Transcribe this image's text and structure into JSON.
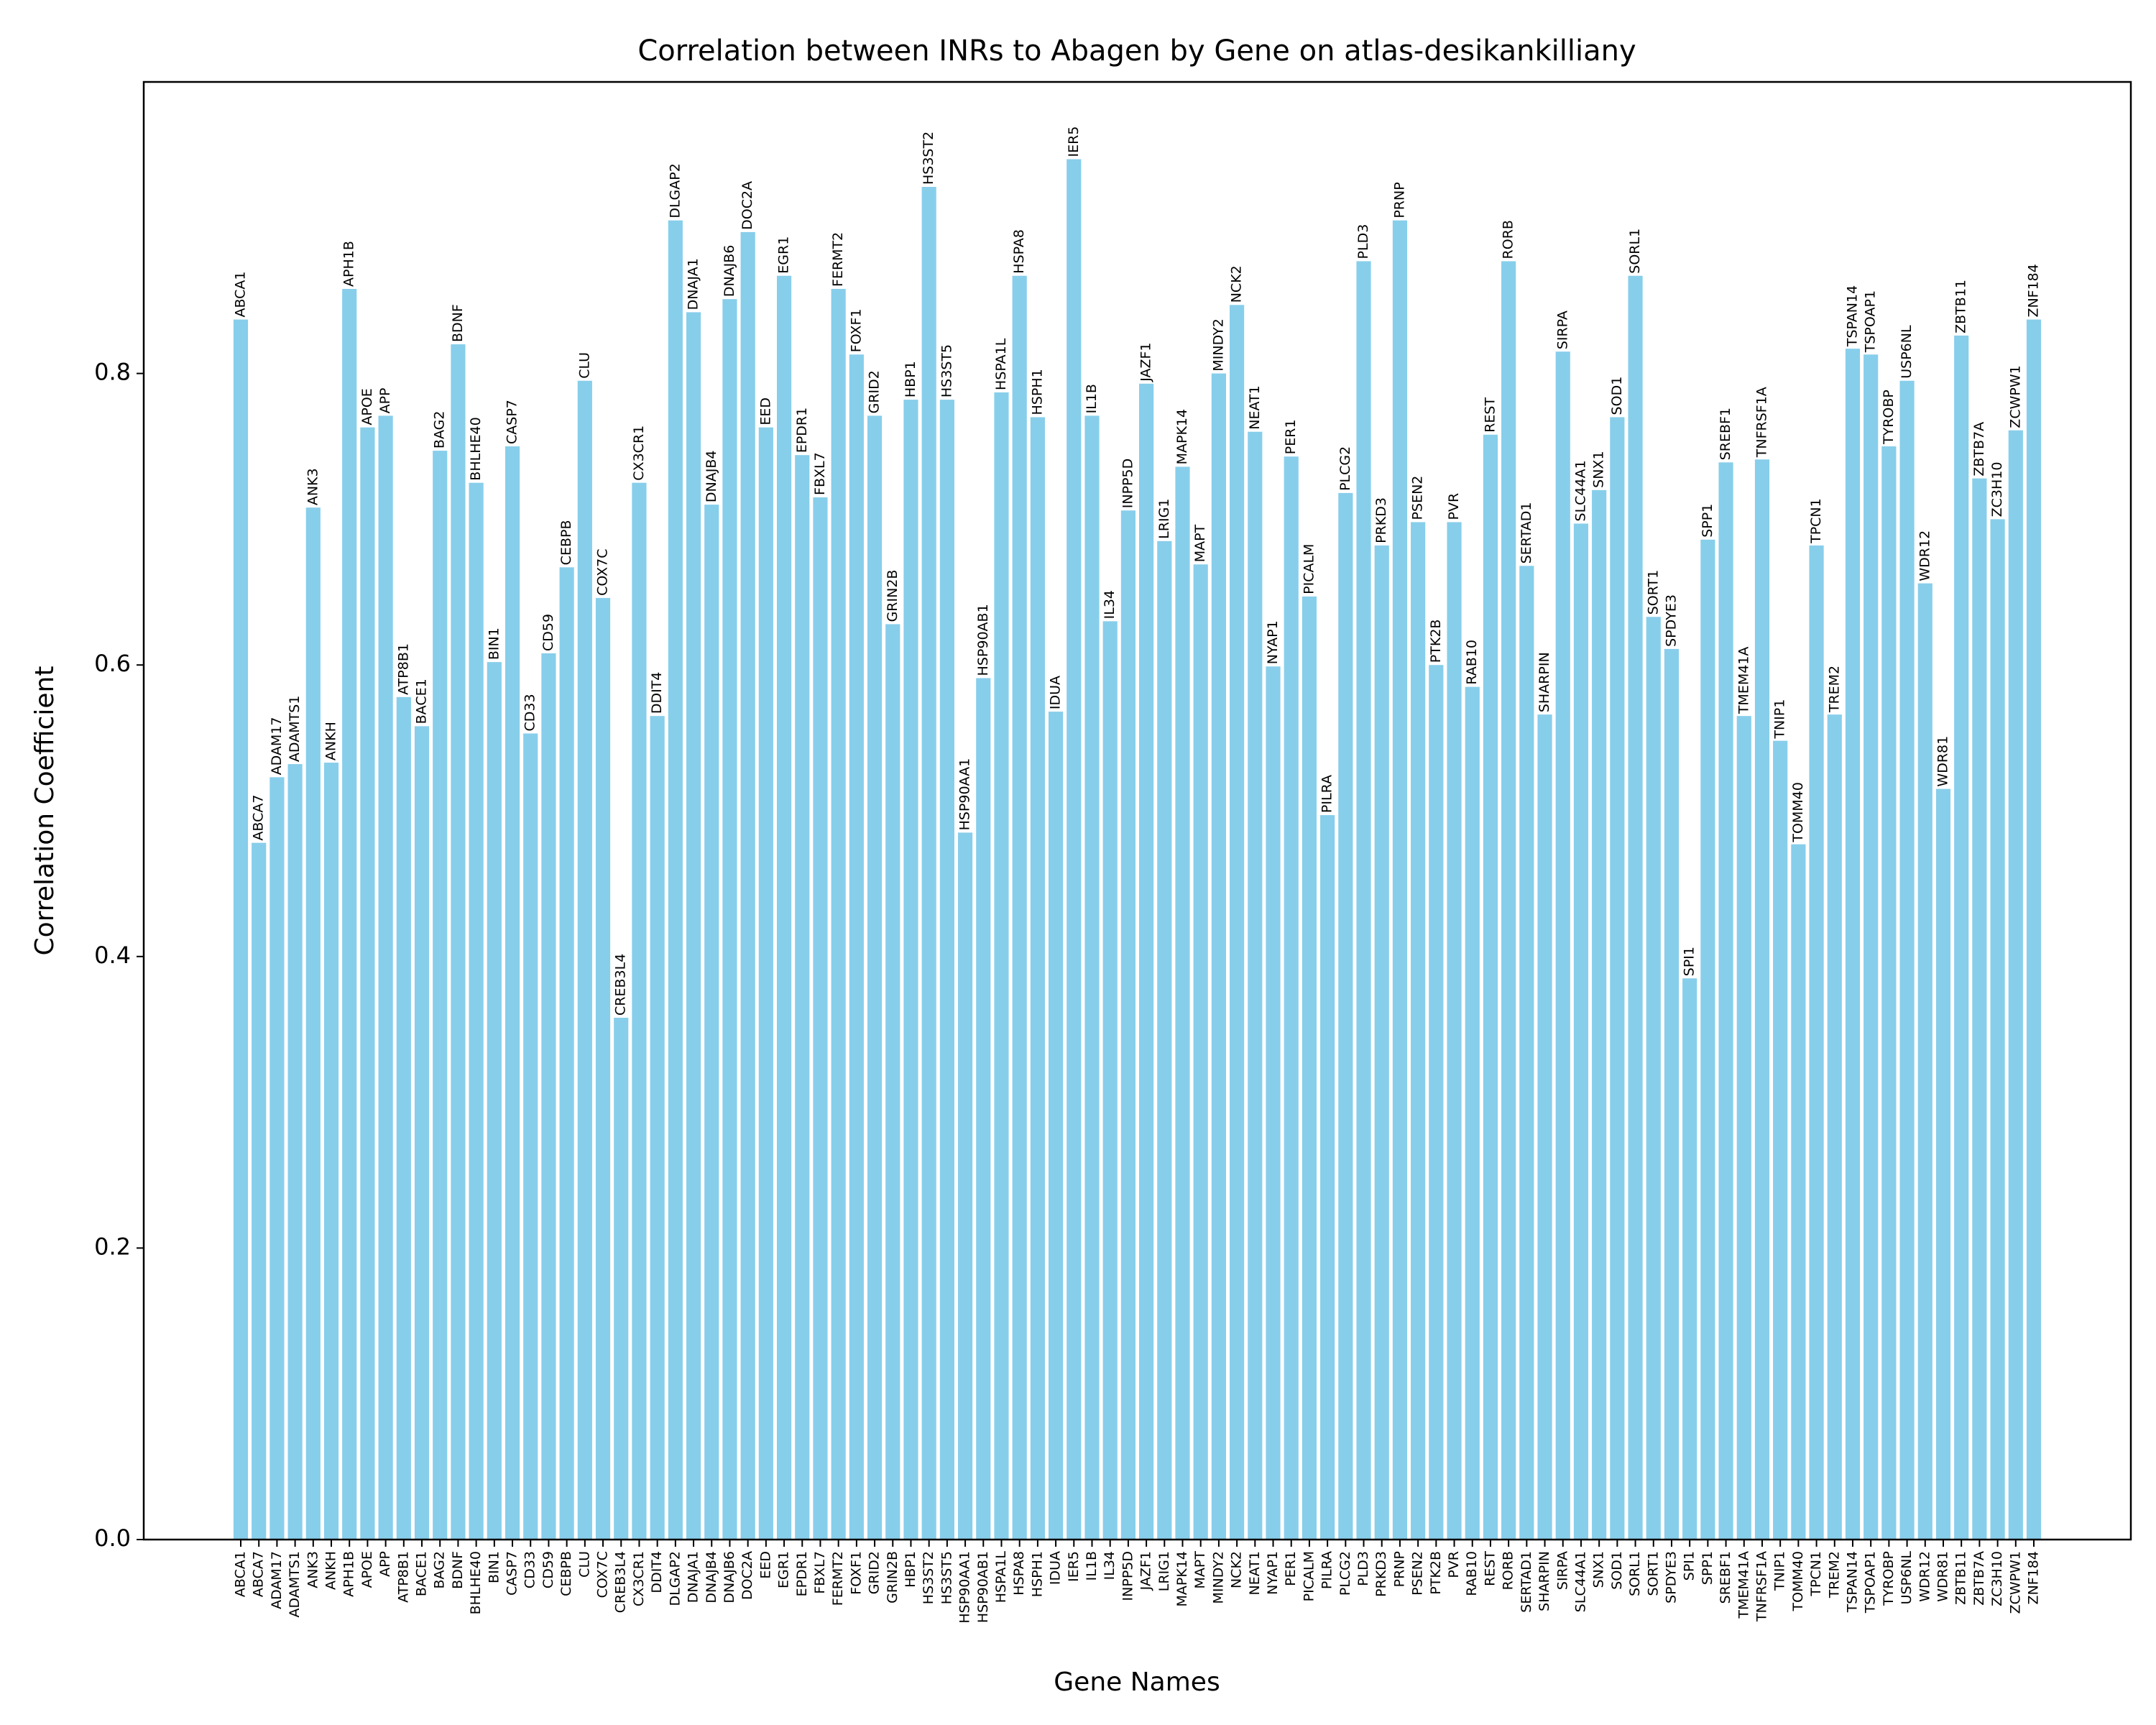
{
  "chart_data": {
    "type": "bar",
    "title": "Correlation between INRs to Abagen by Gene on atlas-desikankilliany",
    "xlabel": "Gene Names",
    "ylabel": "Correlation Coefficient",
    "ylim": [
      0,
      1.0
    ],
    "yticks": [
      "0.0",
      "0.2",
      "0.4",
      "0.6",
      "0.8"
    ],
    "grid": false,
    "bar_color": "#87ceeb",
    "categories": [
      "ABCA1",
      "ABCA7",
      "ADAM17",
      "ADAMTS1",
      "ANK3",
      "ANKH",
      "APH1B",
      "APOE",
      "APP",
      "ATP8B1",
      "BACE1",
      "BAG2",
      "BDNF",
      "BHLHE40",
      "BIN1",
      "CASP7",
      "CD33",
      "CD59",
      "CEBPB",
      "CLU",
      "COX7C",
      "CREB3L4",
      "CX3CR1",
      "DDIT4",
      "DLGAP2",
      "DNAJA1",
      "DNAJB4",
      "DNAJB6",
      "DOC2A",
      "EED",
      "EGR1",
      "EPDR1",
      "FBXL7",
      "FERMT2",
      "FOXF1",
      "GRID2",
      "GRIN2B",
      "HBP1",
      "HS3ST2",
      "HS3ST5",
      "HSP90AA1",
      "HSP90AB1",
      "HSPA1L",
      "HSPA8",
      "HSPH1",
      "IDUA",
      "IER5",
      "IL1B",
      "IL34",
      "INPP5D",
      "JAZF1",
      "LRIG1",
      "MAPK14",
      "MAPT",
      "MINDY2",
      "NCK2",
      "NEAT1",
      "NYAP1",
      "PER1",
      "PICALM",
      "PILRA",
      "PLCG2",
      "PLD3",
      "PRKD3",
      "PRNP",
      "PSEN2",
      "PTK2B",
      "PVR",
      "RAB10",
      "REST",
      "RORB",
      "SERTAD1",
      "SHARPIN",
      "SIRPA",
      "SLC44A1",
      "SNX1",
      "SOD1",
      "SORL1",
      "SORT1",
      "SPDYE3",
      "SPI1",
      "SPP1",
      "SREBF1",
      "TMEM41A",
      "TNFRSF1A",
      "TNIP1",
      "TOMM40",
      "TPCN1",
      "TREM2",
      "TSPAN14",
      "TSPOAP1",
      "TYROBP",
      "USP6NL",
      "WDR12",
      "WDR81",
      "ZBTB11",
      "ZBTB7A",
      "ZC3H10",
      "ZCWPW1",
      "ZNF184"
    ],
    "values": [
      0.837,
      0.478,
      0.523,
      0.532,
      0.708,
      0.533,
      0.858,
      0.763,
      0.771,
      0.578,
      0.558,
      0.747,
      0.82,
      0.725,
      0.602,
      0.75,
      0.553,
      0.608,
      0.667,
      0.795,
      0.646,
      0.358,
      0.725,
      0.565,
      0.905,
      0.842,
      0.71,
      0.851,
      0.897,
      0.763,
      0.867,
      0.744,
      0.715,
      0.858,
      0.813,
      0.771,
      0.628,
      0.782,
      0.928,
      0.782,
      0.485,
      0.591,
      0.787,
      0.867,
      0.77,
      0.568,
      0.947,
      0.771,
      0.63,
      0.706,
      0.793,
      0.685,
      0.736,
      0.669,
      0.8,
      0.847,
      0.76,
      0.599,
      0.743,
      0.647,
      0.497,
      0.718,
      0.877,
      0.682,
      0.905,
      0.698,
      0.6,
      0.698,
      0.585,
      0.758,
      0.877,
      0.668,
      0.566,
      0.815,
      0.697,
      0.72,
      0.77,
      0.867,
      0.633,
      0.611,
      0.385,
      0.686,
      0.739,
      0.565,
      0.741,
      0.548,
      0.477,
      0.682,
      0.566,
      0.817,
      0.813,
      0.75,
      0.795,
      0.656,
      0.515,
      0.826,
      0.728,
      0.7,
      0.761,
      0.837
    ]
  }
}
